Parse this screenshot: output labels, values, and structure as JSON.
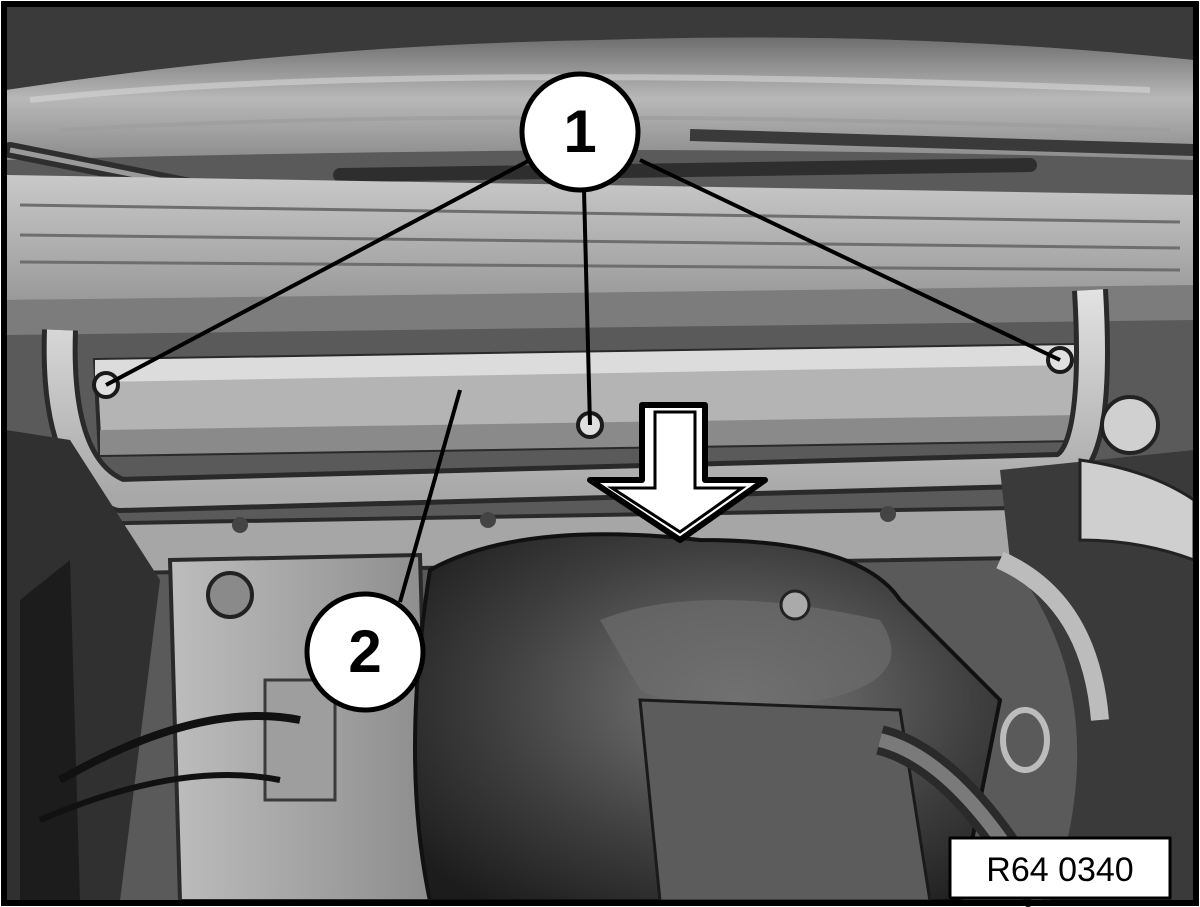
{
  "figure": {
    "callouts": [
      {
        "id": "callout-1",
        "label": "1"
      },
      {
        "id": "callout-2",
        "label": "2"
      }
    ],
    "reference_code": "R64 0340",
    "colors": {
      "frame": "#000000",
      "dark": "#2a2a2a",
      "mid": "#8a8a8a",
      "light": "#cfcfcf",
      "highlight": "#eaeaea"
    }
  }
}
